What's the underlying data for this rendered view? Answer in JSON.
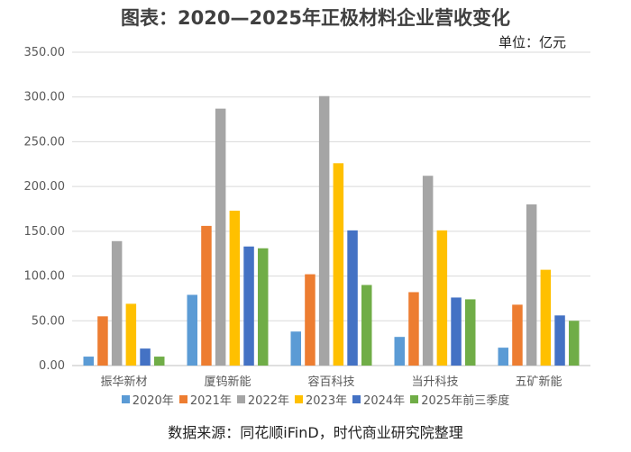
{
  "chart_data": {
    "type": "bar",
    "title": "图表：2020—2025年正极材料企业营收变化",
    "unit_label": "单位：亿元",
    "categories": [
      "振华新材",
      "厦钨新能",
      "容百科技",
      "当升科技",
      "五矿新能"
    ],
    "series": [
      {
        "name": "2020年",
        "color": "#5B9BD5",
        "values": [
          10,
          79,
          38,
          32,
          20
        ]
      },
      {
        "name": "2021年",
        "color": "#ED7D31",
        "values": [
          55,
          156,
          102,
          82,
          68
        ]
      },
      {
        "name": "2022年",
        "color": "#A5A5A5",
        "values": [
          139,
          287,
          301,
          212,
          180
        ]
      },
      {
        "name": "2023年",
        "color": "#FFC000",
        "values": [
          69,
          173,
          226,
          151,
          107
        ]
      },
      {
        "name": "2024年",
        "color": "#4472C4",
        "values": [
          19,
          133,
          151,
          76,
          56
        ]
      },
      {
        "name": "2025年前三季度",
        "color": "#70AD47",
        "values": [
          10,
          131,
          90,
          74,
          50
        ]
      }
    ],
    "yticks": [
      "0.00",
      "50.00",
      "100.00",
      "150.00",
      "200.00",
      "250.00",
      "300.00",
      "350.00"
    ],
    "ylim": [
      0,
      350
    ],
    "grid": true,
    "legend_position": "bottom"
  },
  "source_note": "数据来源：同花顺iFinD，时代商业研究院整理"
}
